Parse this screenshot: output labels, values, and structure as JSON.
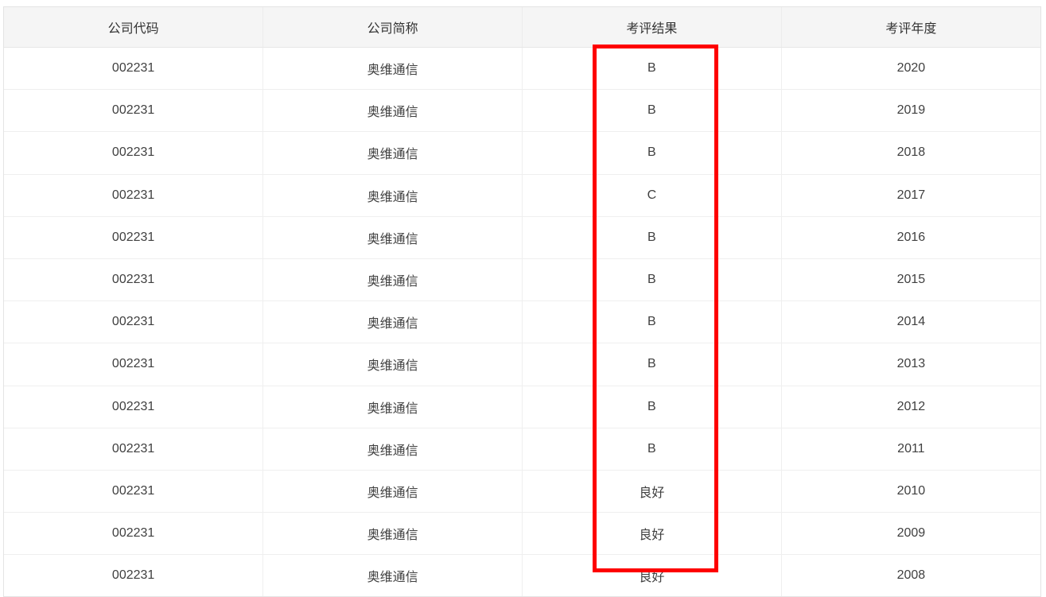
{
  "table": {
    "columns": [
      {
        "key": "code",
        "label": "公司代码"
      },
      {
        "key": "name",
        "label": "公司简称"
      },
      {
        "key": "result",
        "label": "考评结果"
      },
      {
        "key": "year",
        "label": "考评年度"
      }
    ],
    "rows": [
      {
        "code": "002231",
        "name": "奥维通信",
        "result": "B",
        "year": "2020"
      },
      {
        "code": "002231",
        "name": "奥维通信",
        "result": "B",
        "year": "2019"
      },
      {
        "code": "002231",
        "name": "奥维通信",
        "result": "B",
        "year": "2018"
      },
      {
        "code": "002231",
        "name": "奥维通信",
        "result": "C",
        "year": "2017"
      },
      {
        "code": "002231",
        "name": "奥维通信",
        "result": "B",
        "year": "2016"
      },
      {
        "code": "002231",
        "name": "奥维通信",
        "result": "B",
        "year": "2015"
      },
      {
        "code": "002231",
        "name": "奥维通信",
        "result": "B",
        "year": "2014"
      },
      {
        "code": "002231",
        "name": "奥维通信",
        "result": "B",
        "year": "2013"
      },
      {
        "code": "002231",
        "name": "奥维通信",
        "result": "B",
        "year": "2012"
      },
      {
        "code": "002231",
        "name": "奥维通信",
        "result": "B",
        "year": "2011"
      },
      {
        "code": "002231",
        "name": "奥维通信",
        "result": "良好",
        "year": "2010"
      },
      {
        "code": "002231",
        "name": "奥维通信",
        "result": "良好",
        "year": "2009"
      },
      {
        "code": "002231",
        "name": "奥维通信",
        "result": "良好",
        "year": "2008"
      }
    ]
  },
  "highlight": {
    "color": "#fe0000",
    "highlighted_column_label": "考评结果"
  },
  "colors": {
    "header_background": "#f5f5f5",
    "border": "#efefef",
    "text": "#404040",
    "page_background": "#ffffff"
  }
}
